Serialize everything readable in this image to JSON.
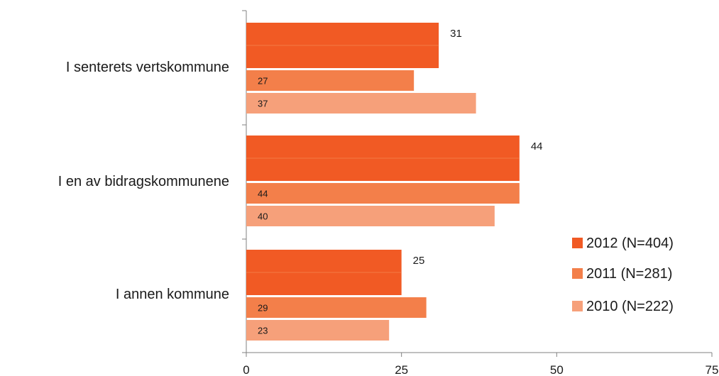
{
  "chart_data": {
    "type": "bar",
    "orientation": "horizontal",
    "categories": [
      "I senterets vertskommune",
      "I en av bidragskommunene",
      "I annen kommune"
    ],
    "series": [
      {
        "name": "2012 (N=404)",
        "values": [
          31,
          44,
          25
        ],
        "color": "#f15a24"
      },
      {
        "name": "2011 (N=281)",
        "values": [
          27,
          44,
          29
        ],
        "color": "#f37f4a"
      },
      {
        "name": "2010 (N=222)",
        "values": [
          37,
          40,
          23
        ],
        "color": "#f6a07a"
      }
    ],
    "xlim": [
      0,
      75
    ],
    "xticks": [
      "0",
      "25",
      "50",
      "75"
    ],
    "grid": false,
    "legend": "right"
  }
}
